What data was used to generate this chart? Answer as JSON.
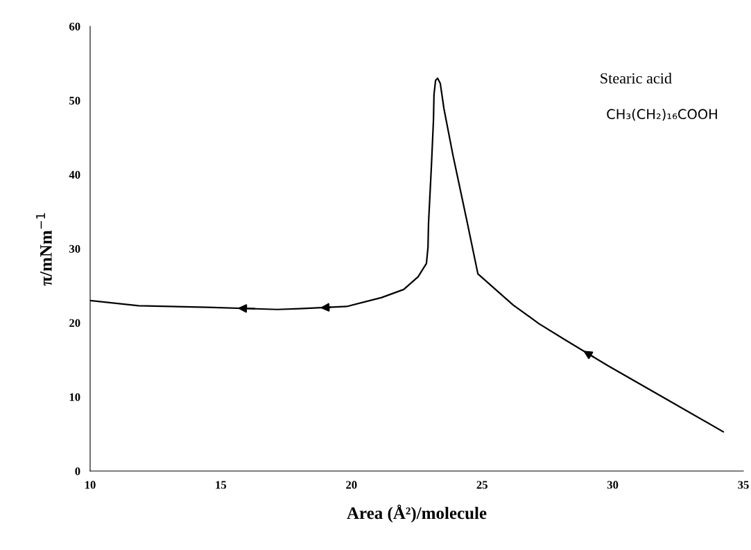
{
  "chart_data": {
    "type": "line",
    "xlabel": "Area (Å²)/molecule",
    "ylabel": "π/mNm$^{−1}$",
    "annotations": [
      "Stearic acid",
      "CH₃(CH₂)₁₆COOH"
    ],
    "series": [
      {
        "color": "#000000",
        "x": [
          34.23,
          32.1,
          29.82,
          28.13,
          27.17,
          26.19,
          24.84,
          24.41,
          23.88,
          23.54,
          23.4,
          23.3,
          23.22,
          23.16,
          23.14,
          23.06,
          22.95,
          22.93,
          22.87,
          22.55,
          22.0,
          21.15,
          19.82,
          18.0,
          17.17,
          14.5,
          11.86,
          10.0
        ],
        "values": [
          5.3,
          9.6,
          14.2,
          17.8,
          19.9,
          22.4,
          26.6,
          33.9,
          42.7,
          48.9,
          52.3,
          53.0,
          52.7,
          50.8,
          47.4,
          41.1,
          33.4,
          30.2,
          28.0,
          26.2,
          24.5,
          23.4,
          22.2,
          21.9,
          21.8,
          22.1,
          22.3,
          23.0
        ]
      }
    ],
    "xlim": [
      10,
      35
    ],
    "xticks": [
      10,
      15,
      20,
      25,
      30,
      35
    ],
    "ylim": [
      0,
      60
    ],
    "yticks": [
      0,
      10,
      20,
      30,
      40,
      50,
      60
    ],
    "grid": false,
    "legend": false,
    "marker": "none",
    "line_style": "solid"
  }
}
